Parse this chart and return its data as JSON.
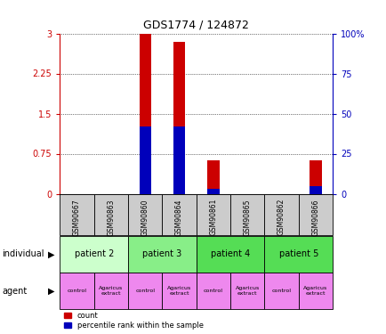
{
  "title": "GDS1774 / 124872",
  "samples": [
    "GSM90667",
    "GSM90863",
    "GSM90860",
    "GSM90864",
    "GSM90861",
    "GSM90865",
    "GSM90862",
    "GSM90866"
  ],
  "count_values": [
    0.0,
    0.0,
    3.0,
    2.85,
    0.62,
    0.0,
    0.0,
    0.62
  ],
  "percentile_values": [
    0.0,
    0.0,
    1.26,
    1.26,
    0.09,
    0.0,
    0.0,
    0.15
  ],
  "ylim_left": [
    0,
    3
  ],
  "ylim_right": [
    0,
    100
  ],
  "yticks_left": [
    0,
    0.75,
    1.5,
    2.25,
    3
  ],
  "yticks_right": [
    0,
    25,
    50,
    75,
    100
  ],
  "ytick_labels_left": [
    "0",
    "0.75",
    "1.5",
    "2.25",
    "3"
  ],
  "ytick_labels_right": [
    "0",
    "25",
    "50",
    "75",
    "100%"
  ],
  "individuals": [
    {
      "label": "patient 2",
      "cols": [
        0,
        1
      ],
      "color": "#ccffcc"
    },
    {
      "label": "patient 3",
      "cols": [
        2,
        3
      ],
      "color": "#88ee88"
    },
    {
      "label": "patient 4",
      "cols": [
        4,
        5
      ],
      "color": "#55dd55"
    },
    {
      "label": "patient 5",
      "cols": [
        6,
        7
      ],
      "color": "#55dd55"
    }
  ],
  "count_color": "#cc0000",
  "percentile_color": "#0000bb",
  "bar_width": 0.35,
  "legend_count_label": "count",
  "legend_percentile_label": "percentile rank within the sample",
  "individual_label": "individual",
  "agent_label": "agent",
  "left_axis_color": "#cc0000",
  "right_axis_color": "#0000bb",
  "agent_color": "#ee88ee",
  "sample_box_color": "#cccccc"
}
